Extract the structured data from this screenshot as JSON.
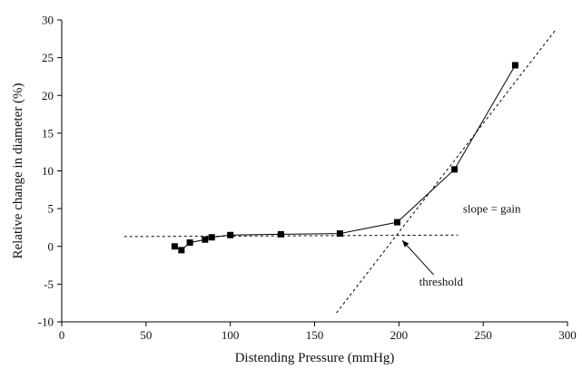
{
  "chart_data": {
    "type": "scatter",
    "xlabel": "Distending Pressure (mmHg)",
    "ylabel": "Relative change in diameter (%)",
    "xlim": [
      0,
      300
    ],
    "ylim": [
      -10,
      30
    ],
    "x_ticks": [
      "0",
      "50",
      "100",
      "150",
      "200",
      "250",
      "300"
    ],
    "y_ticks": [
      "-10",
      "-5",
      "0",
      "5",
      "10",
      "15",
      "20",
      "25",
      "30"
    ],
    "grid": false,
    "series": [
      {
        "points": [
          {
            "x": 67,
            "y": 0
          },
          {
            "x": 71,
            "y": -0.5
          },
          {
            "x": 76,
            "y": 0.5
          },
          {
            "x": 85,
            "y": 0.9
          },
          {
            "x": 89,
            "y": 1.2
          },
          {
            "x": 100,
            "y": 1.5
          },
          {
            "x": 130,
            "y": 1.6
          },
          {
            "x": 165,
            "y": 1.7
          },
          {
            "x": 199,
            "y": 3.2
          },
          {
            "x": 233,
            "y": 10.2
          },
          {
            "x": 269,
            "y": 24
          }
        ]
      }
    ],
    "reference_lines": [
      {
        "style": "dashed",
        "from": {
          "x": 37,
          "y": 1.3
        },
        "to": {
          "x": 235,
          "y": 1.5
        }
      },
      {
        "style": "dashed",
        "from": {
          "x": 163,
          "y": -8.8
        },
        "to": {
          "x": 293,
          "y": 28.7
        }
      }
    ],
    "annotations": [
      {
        "text": "slope = gain",
        "x": 238,
        "y": 4.5
      },
      {
        "text": "threshold",
        "x": 212,
        "y": -5.2,
        "arrow_to": {
          "x": 202,
          "y": 0.8
        }
      }
    ]
  }
}
